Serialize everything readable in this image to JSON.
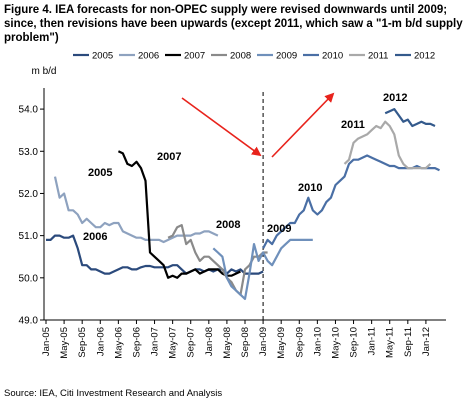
{
  "header": {
    "title": "Figure 4. IEA forecasts for non-OPEC supply were revised downwards until 2009; since, then revisions have been upwards (except 2011, which saw a \"1-m b/d supply problem\")"
  },
  "footer": {
    "source": "Source: IEA, Citi Investment Research and Analysis"
  },
  "chart_data": {
    "type": "line",
    "title": "",
    "ylabel": "m b/d",
    "xlabel": "",
    "ylim": [
      49.0,
      54.5
    ],
    "yticks": [
      "49.0",
      "50.0",
      "51.0",
      "52.0",
      "53.0",
      "54.0"
    ],
    "x_start": "2005-01",
    "xticks": [
      "Jan-05",
      "May-05",
      "Sep-05",
      "Jan-06",
      "May-06",
      "Sep-06",
      "Jan-07",
      "May-07",
      "Sep-07",
      "Jan-08",
      "May-08",
      "Sep-08",
      "Jan-09",
      "May-09",
      "Sep-09",
      "Jan-10",
      "May-10",
      "Sep-10",
      "Jan-11",
      "May-11",
      "Sep-11",
      "Jan-12"
    ],
    "legend_position": "top",
    "grid": false,
    "divider_at": "Jan-09",
    "annotations": [
      "2005",
      "2006",
      "2007",
      "2008",
      "2009",
      "2010",
      "2011",
      "2012"
    ],
    "series": [
      {
        "name": "2005",
        "color": "#2b4a7c",
        "start": "2005-01",
        "values": [
          50.9,
          50.9,
          51.0,
          51.0,
          50.95,
          50.95,
          51.0,
          50.7,
          50.3,
          50.3,
          50.2,
          50.2,
          50.15,
          50.1,
          50.1,
          50.15,
          50.2,
          50.25,
          50.25,
          50.2,
          50.2,
          50.25,
          50.28,
          50.28,
          50.25,
          50.25,
          50.25,
          50.25,
          50.3,
          50.3,
          50.2,
          50.1,
          50.15,
          50.2,
          50.2,
          50.15,
          50.2,
          50.15,
          50.2,
          50.2,
          50.1,
          50.2,
          50.15,
          50.2,
          50.1,
          50.1,
          50.1,
          50.1,
          50.15
        ]
      },
      {
        "name": "2006",
        "color": "#8ea2bf",
        "start": "2005-03",
        "values": [
          52.4,
          51.9,
          52.0,
          51.6,
          51.6,
          51.5,
          51.3,
          51.4,
          51.3,
          51.2,
          51.2,
          51.3,
          51.25,
          51.3,
          51.3,
          51.1,
          51.05,
          51.0,
          50.95,
          50.95,
          50.9,
          50.9,
          50.9,
          50.9,
          50.85,
          50.9,
          50.95,
          51.0,
          51.0,
          51.0,
          51.0,
          51.05,
          51.05,
          51.1,
          51.1,
          51.05,
          51.0
        ]
      },
      {
        "name": "2007",
        "color": "#000000",
        "start": "2006-05",
        "values": [
          53.0,
          52.95,
          52.7,
          52.65,
          52.75,
          52.6,
          52.3,
          50.6,
          50.5,
          50.4,
          50.3,
          50.0,
          50.05,
          50.0,
          50.1,
          50.1,
          50.15,
          50.2,
          50.1,
          50.15,
          50.2,
          50.2,
          50.2,
          50.1,
          50.05,
          50.05,
          50.1,
          50.15
        ]
      },
      {
        "name": "2008",
        "color": "#8a8a8a",
        "start": "2007-04",
        "values": [
          50.95,
          51.0,
          51.2,
          51.25,
          50.8,
          50.9,
          50.6,
          50.4,
          50.5,
          50.5,
          50.4,
          50.3,
          50.2,
          50.0,
          49.9,
          49.7,
          49.6,
          50.2,
          50.3,
          50.5,
          50.5,
          50.6,
          50.6
        ]
      },
      {
        "name": "2009",
        "color": "#6f90bb",
        "start": "2008-02",
        "values": [
          50.7,
          50.6,
          50.5,
          50.0,
          49.8,
          49.7,
          49.6,
          49.5,
          50.1,
          50.8,
          50.4,
          50.6,
          50.4,
          50.3,
          50.5,
          50.7,
          50.8,
          50.9,
          50.9,
          50.9,
          50.9,
          50.9,
          50.9
        ]
      },
      {
        "name": "2010",
        "color": "#4a6fa5",
        "start": "2009-01",
        "values": [
          50.7,
          50.9,
          50.8,
          51.0,
          51.1,
          51.2,
          51.3,
          51.3,
          51.5,
          51.6,
          51.9,
          51.6,
          51.5,
          51.6,
          51.8,
          51.9,
          52.2,
          52.3,
          52.4,
          52.7,
          52.8,
          52.8,
          52.85,
          52.9,
          52.85,
          52.8,
          52.75,
          52.7,
          52.65,
          52.65,
          52.6,
          52.6,
          52.6,
          52.6,
          52.65,
          52.6,
          52.6,
          52.6,
          52.6,
          52.55
        ]
      },
      {
        "name": "2011",
        "color": "#a9a9a9",
        "start": "2010-07",
        "values": [
          52.7,
          52.8,
          53.2,
          53.3,
          53.35,
          53.4,
          53.5,
          53.6,
          53.55,
          53.7,
          53.6,
          53.4,
          52.9,
          52.7,
          52.6,
          52.6,
          52.6,
          52.6,
          52.6,
          52.7
        ]
      },
      {
        "name": "2012",
        "color": "#345a8c",
        "start": "2011-04",
        "values": [
          53.9,
          53.95,
          54.0,
          53.85,
          53.7,
          53.75,
          53.6,
          53.65,
          53.7,
          53.65,
          53.65,
          53.6
        ]
      }
    ]
  }
}
